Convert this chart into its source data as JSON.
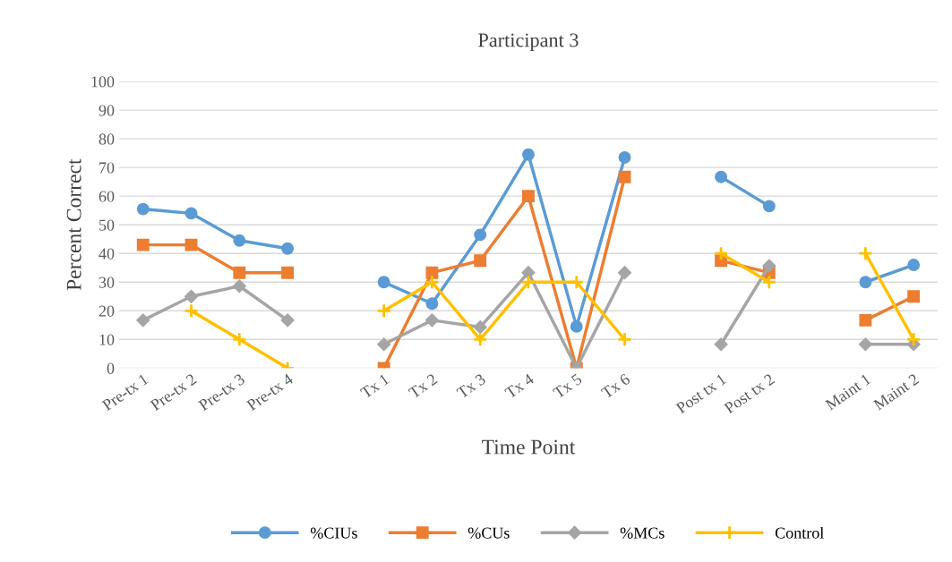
{
  "chart_data": {
    "type": "line",
    "title": "Participant 3",
    "xlabel": "Time Point",
    "ylabel": "Percent Correct",
    "categories": [
      "Pre-tx 1",
      "Pre-tx 2",
      "Pre-tx 3",
      "Pre-tx 4",
      null,
      "Tx 1",
      "Tx 2",
      "Tx 3",
      "Tx 4",
      "Tx 5",
      "Tx 6",
      null,
      "Post tx 1",
      "Post tx 2",
      null,
      "Maint 1",
      "Maint 2"
    ],
    "series": [
      {
        "name": "%CIUs",
        "color": "#5b9bd5",
        "marker": "circle",
        "values": [
          55.5,
          54,
          44.5,
          41.7,
          null,
          30,
          22.5,
          46.5,
          74.5,
          14.5,
          73.5,
          null,
          66.7,
          56.5,
          null,
          30,
          36
        ]
      },
      {
        "name": "%CUs",
        "color": "#ed7d31",
        "marker": "square",
        "values": [
          43,
          43,
          33.3,
          33.3,
          null,
          0,
          33.3,
          37.5,
          60,
          0,
          66.7,
          null,
          37.5,
          33.3,
          null,
          16.7,
          25
        ]
      },
      {
        "name": "%MCs",
        "color": "#a5a5a5",
        "marker": "diamond",
        "values": [
          16.7,
          25,
          28.6,
          16.7,
          null,
          8.3,
          16.7,
          14.3,
          33.3,
          0,
          33.3,
          null,
          8.3,
          35.7,
          null,
          8.3,
          8.3
        ]
      },
      {
        "name": "Control",
        "color": "#ffc000",
        "marker": "cross",
        "values": [
          null,
          20,
          10,
          0,
          null,
          20,
          30,
          10,
          30,
          30,
          10,
          null,
          40,
          30,
          null,
          40,
          10
        ]
      }
    ],
    "ylim": [
      0,
      100
    ],
    "yticks": [
      0,
      10,
      20,
      30,
      40,
      50,
      60,
      70,
      80,
      90,
      100
    ],
    "grid": "y",
    "legend": "bottom"
  }
}
